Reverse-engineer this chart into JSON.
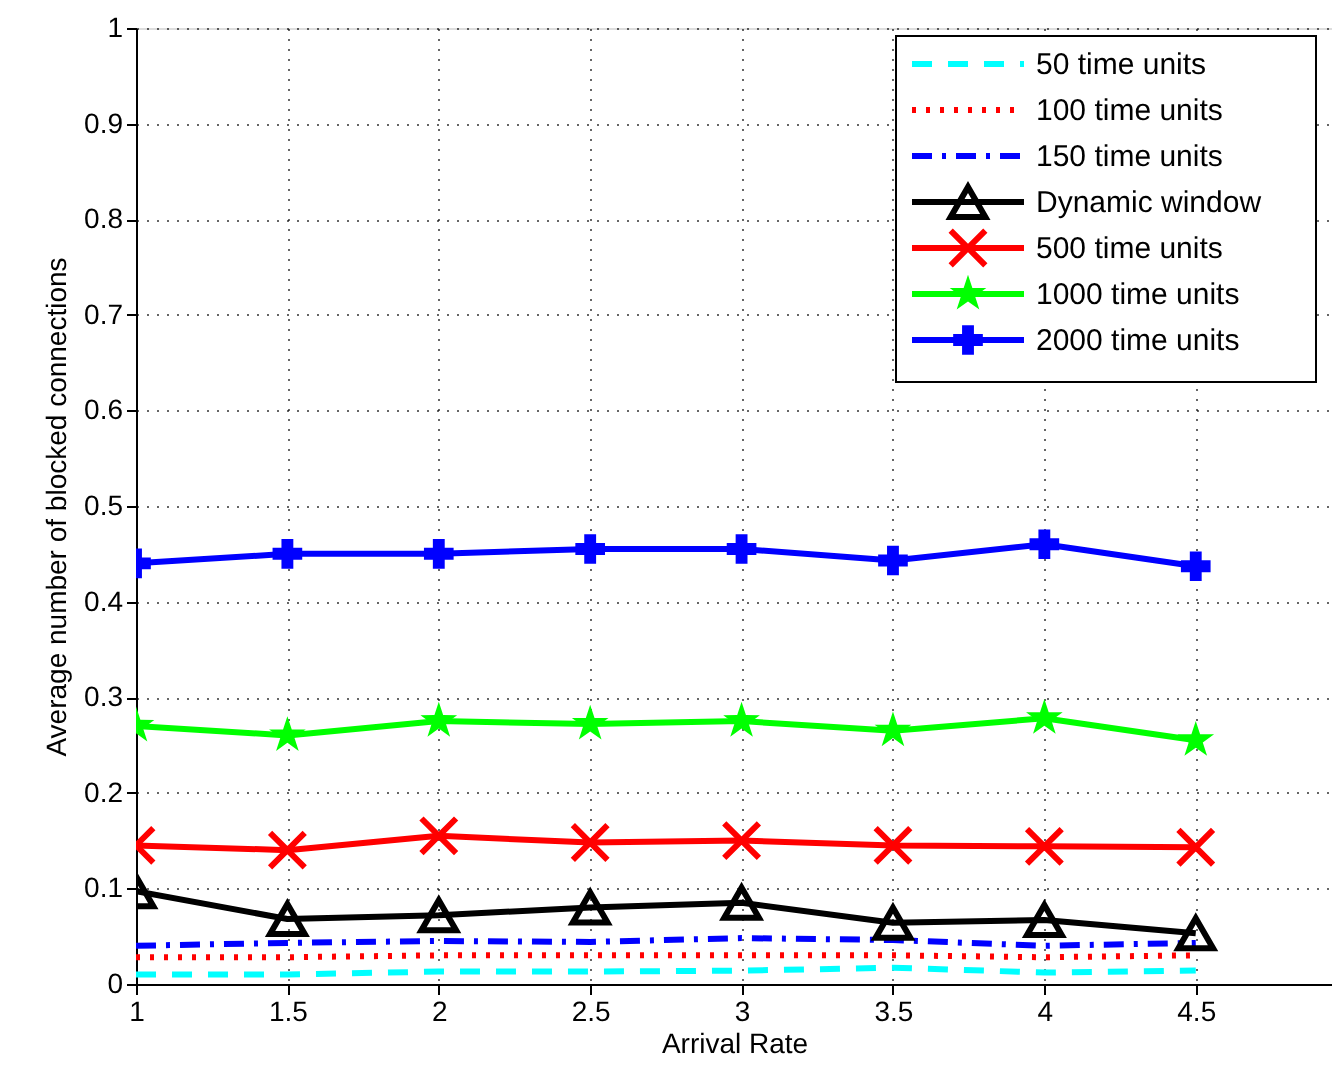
{
  "chart_data": {
    "type": "line",
    "xlabel": "Arrival Rate",
    "ylabel": "Average number of blocked connections",
    "x": [
      1,
      1.5,
      2,
      2.5,
      3,
      3.5,
      4,
      4.5
    ],
    "xlim": [
      1,
      4.95
    ],
    "xticks": [
      1,
      1.5,
      2,
      2.5,
      3,
      3.5,
      4,
      4.5
    ],
    "ylim": [
      0,
      1
    ],
    "yticks": [
      0,
      0.1,
      0.2,
      0.3,
      0.4,
      0.5,
      0.6,
      0.7,
      0.8,
      0.9,
      1
    ],
    "grid": true,
    "legend": "top right",
    "series": [
      {
        "name": "50 time units",
        "color": "#00ffff",
        "line_style": "dashed",
        "marker": "none",
        "values": [
          0.01,
          0.01,
          0.013,
          0.013,
          0.014,
          0.017,
          0.012,
          0.014
        ]
      },
      {
        "name": "100 time units",
        "color": "#ff0000",
        "line_style": "dotted",
        "marker": "none",
        "values": [
          0.028,
          0.028,
          0.03,
          0.03,
          0.03,
          0.03,
          0.028,
          0.03
        ]
      },
      {
        "name": "150 time units",
        "color": "#0000ff",
        "line_style": "dashdot",
        "marker": "none",
        "values": [
          0.04,
          0.043,
          0.045,
          0.044,
          0.048,
          0.046,
          0.04,
          0.043
        ]
      },
      {
        "name": "Dynamic window",
        "color": "#000000",
        "line_style": "solid",
        "marker": "triangle",
        "values": [
          0.097,
          0.068,
          0.072,
          0.08,
          0.085,
          0.064,
          0.067,
          0.053
        ]
      },
      {
        "name": "500 time units",
        "color": "#ff0000",
        "line_style": "solid",
        "marker": "cross",
        "values": [
          0.145,
          0.14,
          0.155,
          0.148,
          0.15,
          0.145,
          0.144,
          0.143
        ]
      },
      {
        "name": "1000 time units",
        "color": "#00ff00",
        "line_style": "solid",
        "marker": "star",
        "values": [
          0.27,
          0.26,
          0.275,
          0.272,
          0.275,
          0.265,
          0.278,
          0.255
        ]
      },
      {
        "name": "2000 time units",
        "color": "#0000ff",
        "line_style": "solid",
        "marker": "cross",
        "values": [
          0.44,
          0.45,
          0.45,
          0.455,
          0.455,
          0.443,
          0.46,
          0.437
        ]
      }
    ]
  }
}
